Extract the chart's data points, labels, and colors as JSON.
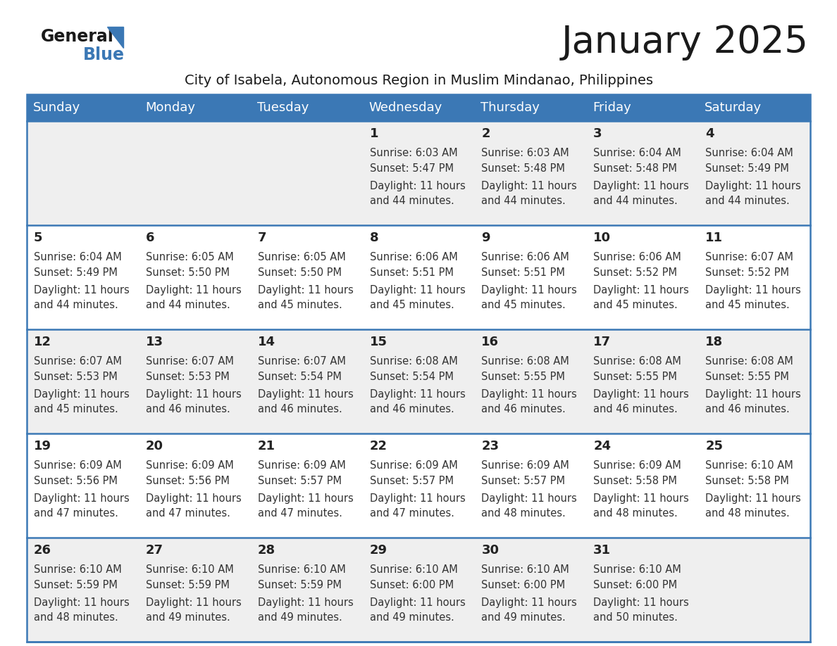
{
  "title": "January 2025",
  "subtitle": "City of Isabela, Autonomous Region in Muslim Mindanao, Philippines",
  "header_bg": "#3b78b5",
  "header_text_color": "#ffffff",
  "days_of_week": [
    "Sunday",
    "Monday",
    "Tuesday",
    "Wednesday",
    "Thursday",
    "Friday",
    "Saturday"
  ],
  "row_bg_light": "#efefef",
  "row_bg_white": "#ffffff",
  "cell_text_color": "#333333",
  "day_num_color": "#222222",
  "border_color": "#3b78b5",
  "calendar_data": [
    [
      {
        "day": null,
        "sunrise": null,
        "sunset": null,
        "daylight": null
      },
      {
        "day": null,
        "sunrise": null,
        "sunset": null,
        "daylight": null
      },
      {
        "day": null,
        "sunrise": null,
        "sunset": null,
        "daylight": null
      },
      {
        "day": "1",
        "sunrise": "6:03 AM",
        "sunset": "5:47 PM",
        "daylight": "11 hours\nand 44 minutes."
      },
      {
        "day": "2",
        "sunrise": "6:03 AM",
        "sunset": "5:48 PM",
        "daylight": "11 hours\nand 44 minutes."
      },
      {
        "day": "3",
        "sunrise": "6:04 AM",
        "sunset": "5:48 PM",
        "daylight": "11 hours\nand 44 minutes."
      },
      {
        "day": "4",
        "sunrise": "6:04 AM",
        "sunset": "5:49 PM",
        "daylight": "11 hours\nand 44 minutes."
      }
    ],
    [
      {
        "day": "5",
        "sunrise": "6:04 AM",
        "sunset": "5:49 PM",
        "daylight": "11 hours\nand 44 minutes."
      },
      {
        "day": "6",
        "sunrise": "6:05 AM",
        "sunset": "5:50 PM",
        "daylight": "11 hours\nand 44 minutes."
      },
      {
        "day": "7",
        "sunrise": "6:05 AM",
        "sunset": "5:50 PM",
        "daylight": "11 hours\nand 45 minutes."
      },
      {
        "day": "8",
        "sunrise": "6:06 AM",
        "sunset": "5:51 PM",
        "daylight": "11 hours\nand 45 minutes."
      },
      {
        "day": "9",
        "sunrise": "6:06 AM",
        "sunset": "5:51 PM",
        "daylight": "11 hours\nand 45 minutes."
      },
      {
        "day": "10",
        "sunrise": "6:06 AM",
        "sunset": "5:52 PM",
        "daylight": "11 hours\nand 45 minutes."
      },
      {
        "day": "11",
        "sunrise": "6:07 AM",
        "sunset": "5:52 PM",
        "daylight": "11 hours\nand 45 minutes."
      }
    ],
    [
      {
        "day": "12",
        "sunrise": "6:07 AM",
        "sunset": "5:53 PM",
        "daylight": "11 hours\nand 45 minutes."
      },
      {
        "day": "13",
        "sunrise": "6:07 AM",
        "sunset": "5:53 PM",
        "daylight": "11 hours\nand 46 minutes."
      },
      {
        "day": "14",
        "sunrise": "6:07 AM",
        "sunset": "5:54 PM",
        "daylight": "11 hours\nand 46 minutes."
      },
      {
        "day": "15",
        "sunrise": "6:08 AM",
        "sunset": "5:54 PM",
        "daylight": "11 hours\nand 46 minutes."
      },
      {
        "day": "16",
        "sunrise": "6:08 AM",
        "sunset": "5:55 PM",
        "daylight": "11 hours\nand 46 minutes."
      },
      {
        "day": "17",
        "sunrise": "6:08 AM",
        "sunset": "5:55 PM",
        "daylight": "11 hours\nand 46 minutes."
      },
      {
        "day": "18",
        "sunrise": "6:08 AM",
        "sunset": "5:55 PM",
        "daylight": "11 hours\nand 46 minutes."
      }
    ],
    [
      {
        "day": "19",
        "sunrise": "6:09 AM",
        "sunset": "5:56 PM",
        "daylight": "11 hours\nand 47 minutes."
      },
      {
        "day": "20",
        "sunrise": "6:09 AM",
        "sunset": "5:56 PM",
        "daylight": "11 hours\nand 47 minutes."
      },
      {
        "day": "21",
        "sunrise": "6:09 AM",
        "sunset": "5:57 PM",
        "daylight": "11 hours\nand 47 minutes."
      },
      {
        "day": "22",
        "sunrise": "6:09 AM",
        "sunset": "5:57 PM",
        "daylight": "11 hours\nand 47 minutes."
      },
      {
        "day": "23",
        "sunrise": "6:09 AM",
        "sunset": "5:57 PM",
        "daylight": "11 hours\nand 48 minutes."
      },
      {
        "day": "24",
        "sunrise": "6:09 AM",
        "sunset": "5:58 PM",
        "daylight": "11 hours\nand 48 minutes."
      },
      {
        "day": "25",
        "sunrise": "6:10 AM",
        "sunset": "5:58 PM",
        "daylight": "11 hours\nand 48 minutes."
      }
    ],
    [
      {
        "day": "26",
        "sunrise": "6:10 AM",
        "sunset": "5:59 PM",
        "daylight": "11 hours\nand 48 minutes."
      },
      {
        "day": "27",
        "sunrise": "6:10 AM",
        "sunset": "5:59 PM",
        "daylight": "11 hours\nand 49 minutes."
      },
      {
        "day": "28",
        "sunrise": "6:10 AM",
        "sunset": "5:59 PM",
        "daylight": "11 hours\nand 49 minutes."
      },
      {
        "day": "29",
        "sunrise": "6:10 AM",
        "sunset": "6:00 PM",
        "daylight": "11 hours\nand 49 minutes."
      },
      {
        "day": "30",
        "sunrise": "6:10 AM",
        "sunset": "6:00 PM",
        "daylight": "11 hours\nand 49 minutes."
      },
      {
        "day": "31",
        "sunrise": "6:10 AM",
        "sunset": "6:00 PM",
        "daylight": "11 hours\nand 50 minutes."
      },
      {
        "day": null,
        "sunrise": null,
        "sunset": null,
        "daylight": null
      }
    ]
  ],
  "logo_general_color": "#1a1a1a",
  "logo_blue_color": "#3b78b5",
  "title_fontsize": 38,
  "subtitle_fontsize": 14,
  "header_fontsize": 13,
  "day_num_fontsize": 13,
  "cell_text_fontsize": 10.5
}
